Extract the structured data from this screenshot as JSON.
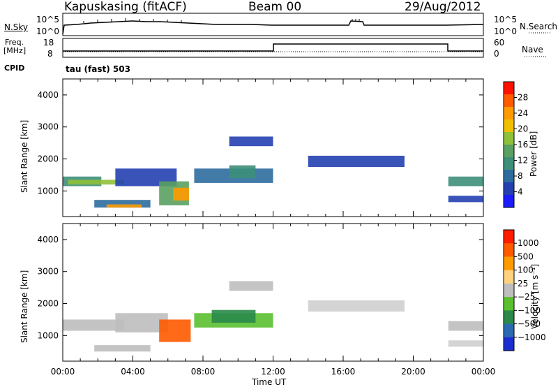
{
  "header": {
    "site": "Kapuskasing (fitACF)",
    "beam": "Beam 00",
    "date": "29/Aug/2012"
  },
  "top_strips": {
    "nsky_label": "N.Sky",
    "nsky_ticks": [
      "10^5",
      "10^0"
    ],
    "nsearch_label": "N.Search",
    "nsearch_ticks": [
      "10^5",
      "10^0"
    ],
    "freq_label_1": "Freq.",
    "freq_label_2": "[MHz]",
    "freq_ticks": [
      "18",
      "8"
    ],
    "nave_label": "Nave",
    "nave_ticks": [
      "60",
      "0"
    ],
    "cpid_label": "CPID",
    "cpid_value": "tau (fast) 503"
  },
  "chart_data": [
    {
      "type": "heatmap",
      "name": "power-panel",
      "ylabel": "Slant Range [km]",
      "xlabel": "Time UT",
      "y_ticks": [
        "4000",
        "3000",
        "2000",
        "1000"
      ],
      "y_tick_values": [
        4000,
        3000,
        2000,
        1000
      ],
      "ylim": [
        200,
        4500
      ],
      "x_ticks": [
        "00:00",
        "04:00",
        "08:00",
        "12:00",
        "16:00",
        "20:00",
        "00:00"
      ],
      "x_hours": [
        0,
        4,
        8,
        12,
        16,
        20,
        24
      ],
      "colorbar": {
        "label": "Power [dB]",
        "ticks": [
          "28",
          "24",
          "20",
          "16",
          "12",
          "8",
          "4"
        ],
        "colors": [
          "#1b1bff",
          "#2440b0",
          "#2d6b9e",
          "#3d8f7a",
          "#5aa060",
          "#8fc03a",
          "#f0c000",
          "#ff9a00",
          "#ff5a00",
          "#ff1000"
        ]
      },
      "regions": [
        {
          "t0": 0.0,
          "t1": 2.2,
          "r0": 1150,
          "r1": 1450,
          "color": "#3d8f7a"
        },
        {
          "t0": 0.3,
          "t1": 3.5,
          "r0": 1200,
          "r1": 1350,
          "color": "#8fc03a"
        },
        {
          "t0": 3.0,
          "t1": 6.5,
          "r0": 1150,
          "r1": 1700,
          "color": "#2440b0"
        },
        {
          "t0": 1.8,
          "t1": 5.0,
          "r0": 480,
          "r1": 720,
          "color": "#2d6b9e"
        },
        {
          "t0": 2.5,
          "t1": 4.5,
          "r0": 480,
          "r1": 580,
          "color": "#ff9a00"
        },
        {
          "t0": 5.5,
          "t1": 7.2,
          "r0": 550,
          "r1": 1300,
          "color": "#5aa060"
        },
        {
          "t0": 6.3,
          "t1": 7.2,
          "r0": 700,
          "r1": 1100,
          "color": "#ff9a00"
        },
        {
          "t0": 7.5,
          "t1": 12.0,
          "r0": 1250,
          "r1": 1700,
          "color": "#2d6b9e"
        },
        {
          "t0": 9.5,
          "t1": 11.0,
          "r0": 1400,
          "r1": 1800,
          "color": "#3d8f7a"
        },
        {
          "t0": 9.5,
          "t1": 12.0,
          "r0": 2400,
          "r1": 2700,
          "color": "#2440b0"
        },
        {
          "t0": 14.0,
          "t1": 19.5,
          "r0": 1750,
          "r1": 2100,
          "color": "#2440b0"
        },
        {
          "t0": 22.0,
          "t1": 24.0,
          "r0": 1150,
          "r1": 1450,
          "color": "#3d8f7a"
        },
        {
          "t0": 22.0,
          "t1": 24.0,
          "r0": 650,
          "r1": 850,
          "color": "#2440b0"
        }
      ]
    },
    {
      "type": "heatmap",
      "name": "velocity-panel",
      "ylabel": "Slant Range [km]",
      "xlabel": "Time UT",
      "y_ticks": [
        "4000",
        "3000",
        "2000",
        "1000"
      ],
      "y_tick_values": [
        4000,
        3000,
        2000,
        1000
      ],
      "ylim": [
        200,
        4500
      ],
      "x_ticks": [
        "00:00",
        "04:00",
        "08:00",
        "12:00",
        "16:00",
        "20:00",
        "00:00"
      ],
      "x_hours": [
        0,
        4,
        8,
        12,
        16,
        20,
        24
      ],
      "colorbar": {
        "label": "Velocity [m s⁻¹]",
        "ticks": [
          "1000",
          "500",
          "100",
          "25",
          "−25",
          "−100",
          "−500",
          "−1000"
        ],
        "colors": [
          "#1a2dd0",
          "#2a6ab0",
          "#2a8a4a",
          "#5ac030",
          "#bebebe",
          "#ffd27f",
          "#ff9a00",
          "#ff5a00",
          "#ff1a00"
        ]
      },
      "regions": [
        {
          "t0": 0.0,
          "t1": 3.5,
          "r0": 1150,
          "r1": 1500,
          "color": "#bebebe"
        },
        {
          "t0": 3.0,
          "t1": 6.0,
          "r0": 1100,
          "r1": 1700,
          "color": "#bebebe"
        },
        {
          "t0": 1.8,
          "t1": 5.0,
          "r0": 500,
          "r1": 700,
          "color": "#bebebe"
        },
        {
          "t0": 5.5,
          "t1": 7.3,
          "r0": 800,
          "r1": 1500,
          "color": "#ff5a00"
        },
        {
          "t0": 7.5,
          "t1": 12.0,
          "r0": 1250,
          "r1": 1700,
          "color": "#5ac030"
        },
        {
          "t0": 8.5,
          "t1": 11.0,
          "r0": 1400,
          "r1": 1800,
          "color": "#2a8a4a"
        },
        {
          "t0": 9.5,
          "t1": 12.0,
          "r0": 2400,
          "r1": 2700,
          "color": "#bebebe"
        },
        {
          "t0": 14.0,
          "t1": 19.5,
          "r0": 1750,
          "r1": 2100,
          "color": "#cfcfcf"
        },
        {
          "t0": 22.0,
          "t1": 24.0,
          "r0": 1150,
          "r1": 1450,
          "color": "#bebebe"
        },
        {
          "t0": 22.0,
          "t1": 24.0,
          "r0": 650,
          "r1": 850,
          "color": "#cfcfcf"
        }
      ]
    }
  ]
}
